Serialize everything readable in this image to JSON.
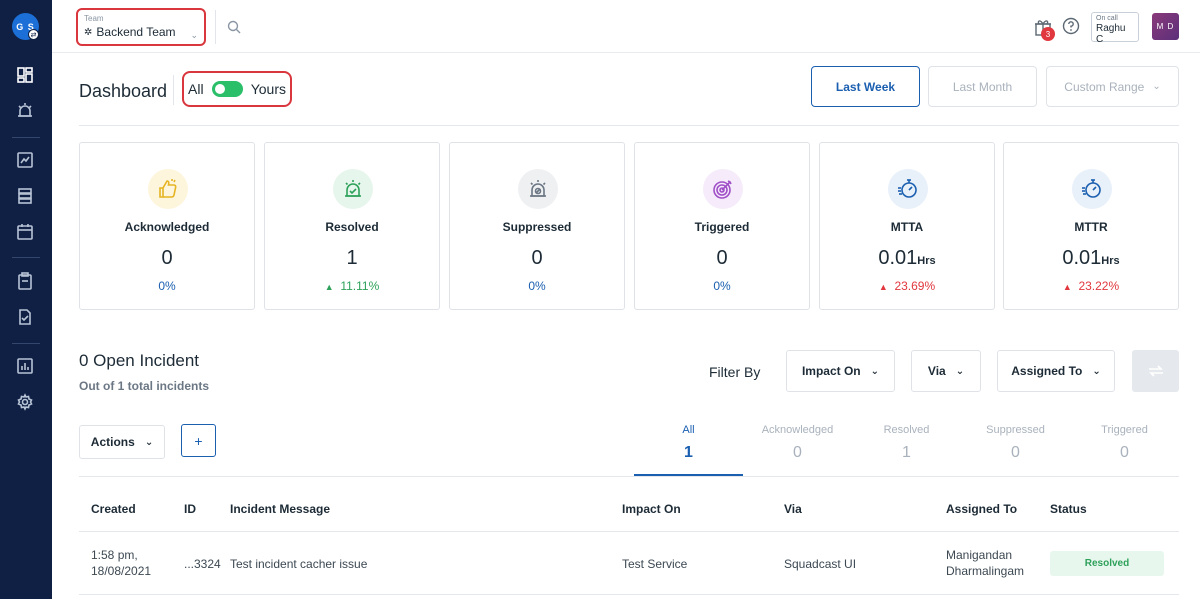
{
  "sidebar": {
    "org_initials": "G S",
    "icons": [
      "dashboard-icon",
      "incidents-icon",
      "analytics-icon",
      "services-icon",
      "schedules-icon",
      "runbooks-icon",
      "postmortems-icon",
      "reports-icon",
      "settings-icon"
    ]
  },
  "topbar": {
    "team_caption": "Team",
    "team_value": "Backend Team",
    "notification_count": "3",
    "oncall_caption": "On call",
    "oncall_name": "Raghu C",
    "user_initials": "M D"
  },
  "header": {
    "title": "Dashboard",
    "toggle_all": "All",
    "toggle_yours": "Yours",
    "ranges": [
      "Last Week",
      "Last Month",
      "Custom Range"
    ]
  },
  "stats": [
    {
      "label": "Acknowledged",
      "value": "0",
      "unit": "",
      "pct": "0%",
      "trend": "none",
      "icon": "thumbs-up-icon",
      "color": "#e6b422"
    },
    {
      "label": "Resolved",
      "value": "1",
      "unit": "",
      "pct": "11.11%",
      "trend": "up-good",
      "icon": "alarm-check-icon",
      "color": "#2ea15a"
    },
    {
      "label": "Suppressed",
      "value": "0",
      "unit": "",
      "pct": "0%",
      "trend": "none",
      "icon": "siren-off-icon",
      "color": "#6b7784"
    },
    {
      "label": "Triggered",
      "value": "0",
      "unit": "",
      "pct": "0%",
      "trend": "none",
      "icon": "target-icon",
      "color": "#a04fc8"
    },
    {
      "label": "MTTA",
      "value": "0.01",
      "unit": "Hrs",
      "pct": "23.69%",
      "trend": "up-bad",
      "icon": "stopwatch-icon",
      "color": "#1b5fb0"
    },
    {
      "label": "MTTR",
      "value": "0.01",
      "unit": "Hrs",
      "pct": "23.22%",
      "trend": "up-bad",
      "icon": "stopwatch-icon",
      "color": "#1b5fb0"
    }
  ],
  "incidents": {
    "title": "0 Open Incident",
    "subtitle": "Out of 1 total incidents",
    "filter_label": "Filter By",
    "filters": [
      "Impact On",
      "Via",
      "Assigned To"
    ],
    "actions_label": "Actions",
    "add_label": "+",
    "status_tabs": [
      {
        "label": "All",
        "count": "1"
      },
      {
        "label": "Acknowledged",
        "count": "0"
      },
      {
        "label": "Resolved",
        "count": "1"
      },
      {
        "label": "Suppressed",
        "count": "0"
      },
      {
        "label": "Triggered",
        "count": "0"
      }
    ],
    "columns": [
      "Created",
      "ID",
      "Incident Message",
      "Impact On",
      "Via",
      "Assigned To",
      "Status"
    ],
    "rows": [
      {
        "created_time": "1:58 pm,",
        "created_date": "18/08/2021",
        "id": "...3324",
        "message": "Test incident cacher issue",
        "impact_on": "Test Service",
        "via": "Squadcast UI",
        "assigned_first": "Manigandan",
        "assigned_last": "Dharmalingam",
        "status": "Resolved"
      }
    ]
  }
}
